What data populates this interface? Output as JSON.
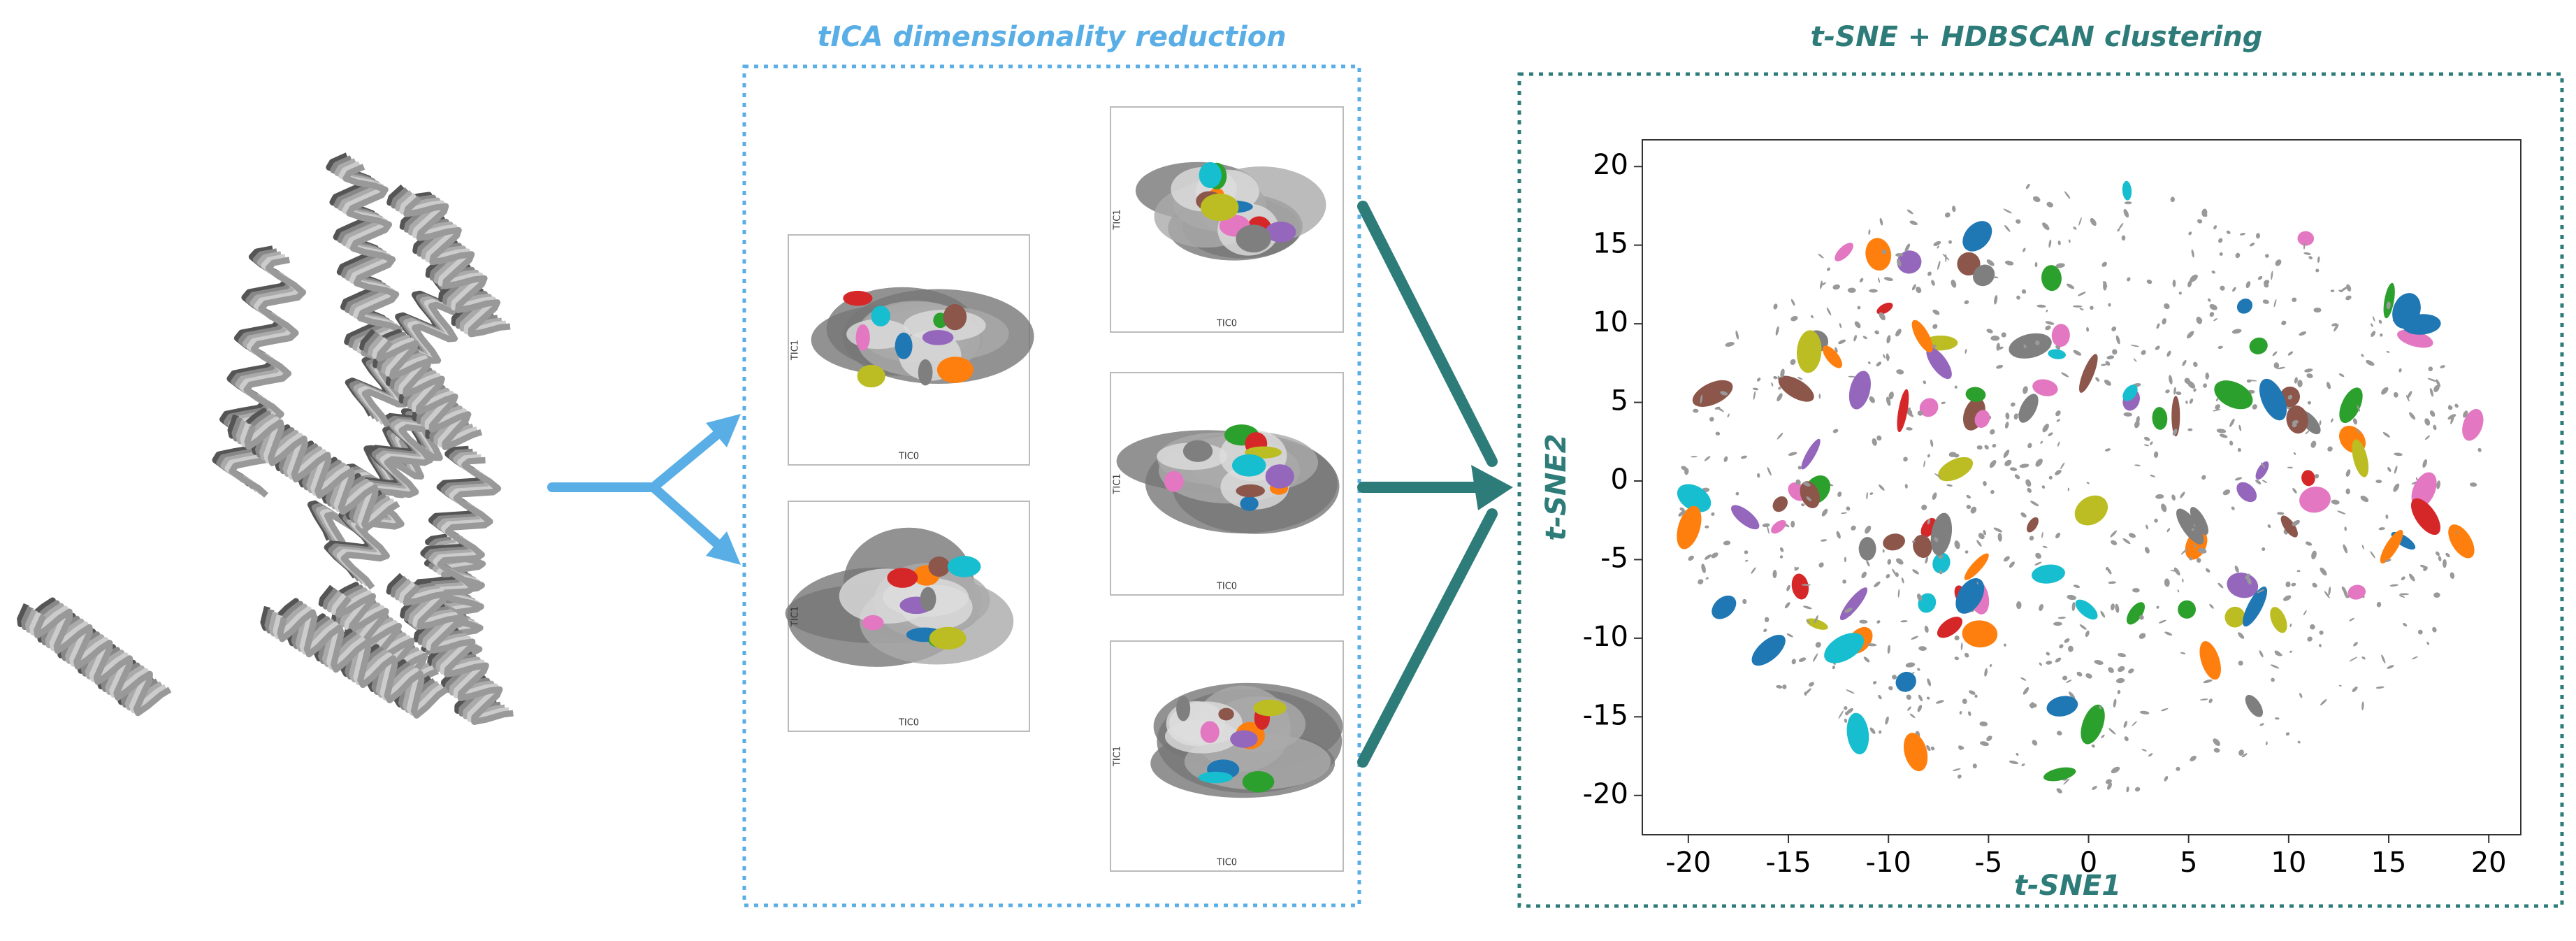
{
  "tica": {
    "title": "tICA dimensionality reduction",
    "plots": [
      {
        "x_label": "TIC0",
        "y_label": "TIC1"
      },
      {
        "x_label": "TIC0",
        "y_label": "TIC1"
      },
      {
        "x_label": "TIC0",
        "y_label": "TIC1"
      },
      {
        "x_label": "TIC0",
        "y_label": "TIC1"
      },
      {
        "x_label": "TIC0",
        "y_label": "TIC1"
      }
    ]
  },
  "chart_data": {
    "type": "scatter",
    "title": "t-SNE + HDBSCAN clustering",
    "x_label": "t-SNE1",
    "y_label": "t-SNE2",
    "xlim": [
      -22.3,
      21.6
    ],
    "ylim": [
      -22.5,
      21.7
    ],
    "xticks": [
      -20,
      -15,
      -10,
      -5,
      0,
      5,
      10,
      15,
      20
    ],
    "yticks": [
      -20,
      -15,
      -10,
      -5,
      0,
      5,
      10,
      15,
      20
    ]
  }
}
